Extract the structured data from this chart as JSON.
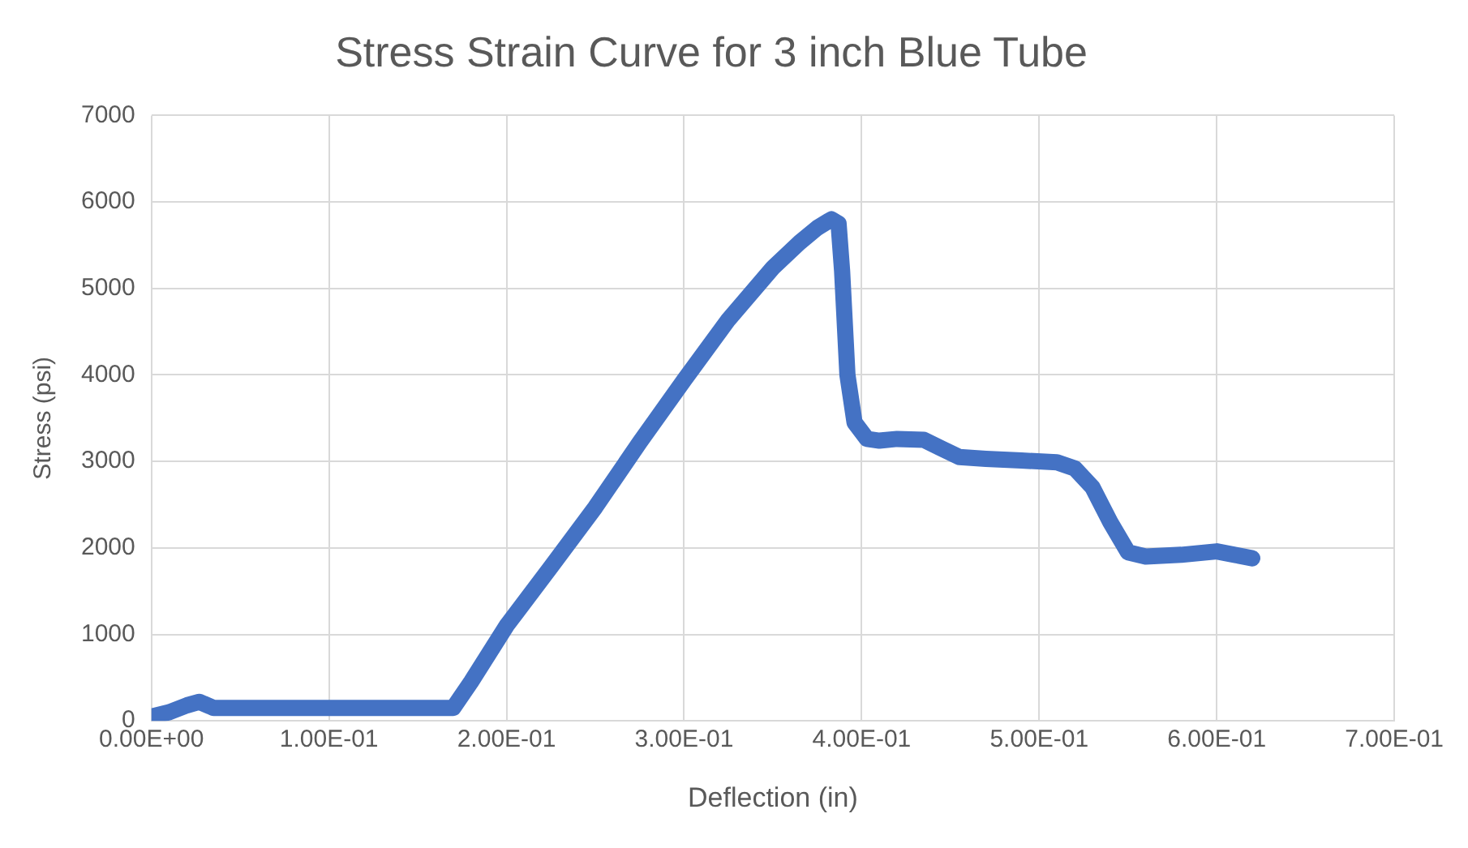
{
  "chart_data": {
    "type": "line",
    "title": "Stress Strain Curve for 3 inch Blue Tube",
    "xlabel": "Deflection (in)",
    "ylabel": "Stress (psi)",
    "xlim": [
      0,
      0.7
    ],
    "xticks": [
      {
        "value": 0,
        "label": "0.00E+00"
      },
      {
        "value": 0.1,
        "label": "1.00E-01"
      },
      {
        "value": 0.2,
        "label": "2.00E-01"
      },
      {
        "value": 0.3,
        "label": "3.00E-01"
      },
      {
        "value": 0.4,
        "label": "4.00E-01"
      },
      {
        "value": 0.5,
        "label": "5.00E-01"
      },
      {
        "value": 0.6,
        "label": "6.00E-01"
      },
      {
        "value": 0.7,
        "label": "7.00E-01"
      }
    ],
    "ylim": [
      0,
      7000
    ],
    "yticks": [
      0,
      1000,
      2000,
      3000,
      4000,
      5000,
      6000,
      7000
    ],
    "grid": true,
    "legend": false,
    "marker": "none",
    "line_style": "solid",
    "series": [
      {
        "color": "#4472c4",
        "x": [
          0,
          0.01,
          0.02,
          0.027,
          0.035,
          0.06,
          0.1,
          0.14,
          0.17,
          0.18,
          0.2,
          0.225,
          0.25,
          0.275,
          0.3,
          0.325,
          0.35,
          0.365,
          0.375,
          0.383,
          0.387,
          0.389,
          0.392,
          0.396,
          0.403,
          0.41,
          0.42,
          0.435,
          0.445,
          0.455,
          0.47,
          0.49,
          0.51,
          0.52,
          0.53,
          0.54,
          0.55,
          0.56,
          0.58,
          0.6,
          0.61,
          0.62
        ],
        "values": [
          50,
          100,
          180,
          220,
          150,
          150,
          150,
          150,
          150,
          450,
          1100,
          1780,
          2470,
          3220,
          3940,
          4640,
          5240,
          5530,
          5700,
          5800,
          5750,
          5200,
          4000,
          3450,
          3260,
          3240,
          3260,
          3250,
          3150,
          3050,
          3030,
          3010,
          2990,
          2920,
          2700,
          2300,
          1950,
          1900,
          1920,
          1960,
          1920,
          1880
        ]
      }
    ]
  }
}
